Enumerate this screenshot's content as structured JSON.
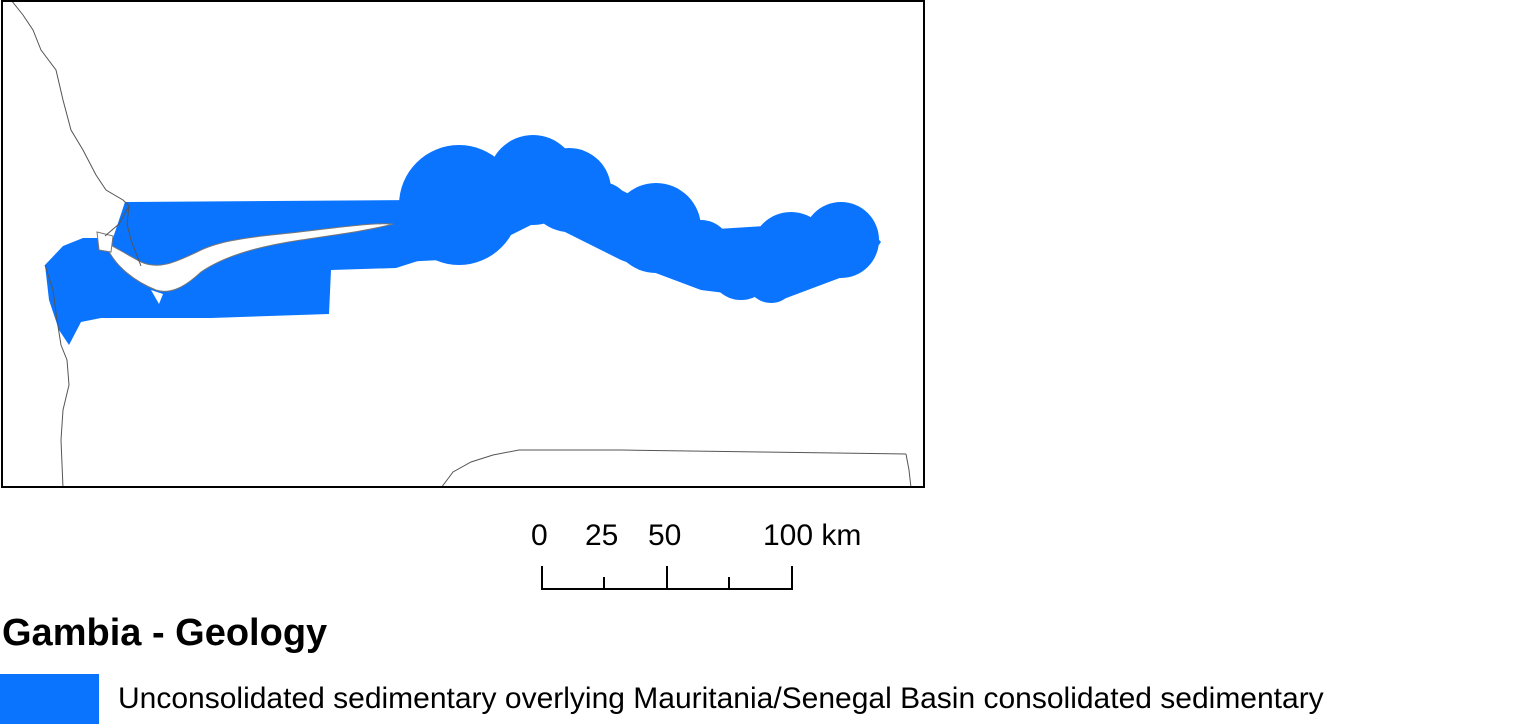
{
  "map": {
    "title": "Gambia - Geology",
    "unit_color": "#0a74ff",
    "border_color": "#000000",
    "boundary_color": "#555555"
  },
  "scale_bar": {
    "labels": [
      "0",
      "25",
      "50",
      "100 km"
    ]
  },
  "legend": {
    "items": [
      {
        "label": "Unconsolidated sedimentary overlying Mauritania/Senegal Basin consolidated sedimentary",
        "color": "#0a74ff"
      }
    ]
  }
}
